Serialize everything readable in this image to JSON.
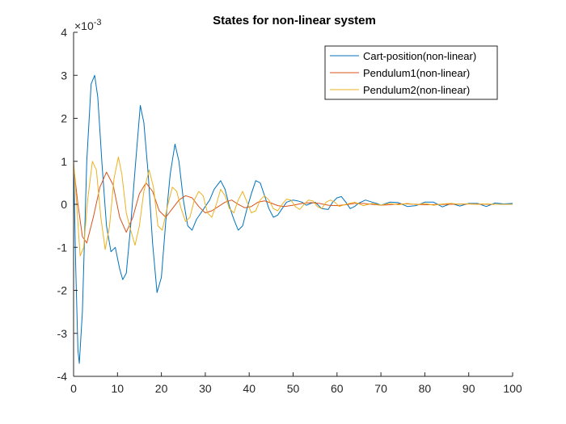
{
  "chart_data": {
    "type": "line",
    "title": "States for non-linear system",
    "xlabel": "",
    "ylabel": "",
    "xlim": [
      0,
      100
    ],
    "ylim": [
      -4,
      4
    ],
    "y_exponent_label": "×10",
    "y_exponent_power": "-3",
    "x_ticks": [
      "0",
      "10",
      "20",
      "30",
      "40",
      "50",
      "60",
      "70",
      "80",
      "90",
      "100"
    ],
    "y_ticks": [
      "4",
      "3",
      "2",
      "1",
      "0",
      "-1",
      "-2",
      "-3",
      "-4"
    ],
    "grid": false,
    "legend_position": "top-right",
    "series": [
      {
        "name": "Cart-position(non-linear)",
        "color": "#0072BD",
        "x": [
          0,
          0.5,
          1.0,
          1.3,
          2.0,
          3.0,
          4.0,
          4.8,
          5.5,
          6.5,
          7.5,
          8.5,
          9.5,
          10.5,
          11.2,
          12.0,
          13.0,
          14.0,
          15.2,
          16.0,
          17.0,
          18.0,
          19.0,
          20.0,
          21.0,
          22.0,
          23.1,
          24.0,
          25.0,
          26.0,
          27.0,
          28.0,
          29.0,
          30.0,
          31.0,
          32.0,
          33.5,
          34.5,
          35.5,
          36.5,
          37.5,
          38.5,
          39.5,
          40.5,
          41.5,
          42.5,
          43.5,
          44.5,
          45.5,
          46.5,
          47.5,
          48.5,
          50.0,
          51.0,
          52.0,
          53.0,
          54.0,
          55.0,
          56.5,
          58.0,
          59.0,
          60.0,
          61.0,
          62.0,
          63.0,
          64.0,
          65.0,
          66.5,
          68.0,
          69.0,
          70.0,
          72.0,
          74.0,
          76.0,
          78.0,
          80.0,
          82.0,
          84.0,
          86.0,
          88.0,
          90.0,
          92.0,
          94.0,
          96.0,
          98.0,
          100.0
        ],
        "y": [
          1.0,
          -1.5,
          -3.4,
          -3.7,
          -2.5,
          1.0,
          2.8,
          3.0,
          2.5,
          0.9,
          -0.5,
          -1.1,
          -1.0,
          -1.5,
          -1.75,
          -1.6,
          -0.5,
          0.8,
          2.3,
          1.9,
          0.7,
          -0.9,
          -2.05,
          -1.7,
          -0.4,
          0.7,
          1.4,
          1.0,
          0.1,
          -0.5,
          -0.6,
          -0.35,
          -0.2,
          -0.05,
          0.1,
          0.35,
          0.55,
          0.35,
          -0.05,
          -0.35,
          -0.6,
          -0.5,
          -0.1,
          0.25,
          0.55,
          0.5,
          0.2,
          -0.1,
          -0.3,
          -0.25,
          -0.1,
          0.05,
          0.1,
          0.08,
          0.05,
          -0.02,
          0.02,
          0.05,
          -0.1,
          -0.12,
          0.05,
          0.15,
          0.18,
          0.05,
          -0.1,
          -0.05,
          0.03,
          0.1,
          0.05,
          0.02,
          -0.02,
          0.05,
          0.04,
          -0.05,
          -0.03,
          0.05,
          0.05,
          -0.06,
          0.02,
          -0.04,
          0.02,
          0.02,
          -0.05,
          0.03,
          0.01,
          0.02
        ]
      },
      {
        "name": "Pendulum1(non-linear)",
        "color": "#D95319",
        "x": [
          0,
          1.0,
          2.0,
          3.0,
          4.5,
          6.0,
          7.5,
          9.0,
          10.5,
          12.0,
          13.5,
          15.0,
          16.5,
          18.0,
          19.5,
          21.0,
          22.5,
          24.0,
          25.5,
          27.0,
          28.5,
          30.0,
          31.5,
          33.0,
          34.5,
          36.0,
          37.5,
          39.0,
          40.5,
          42.0,
          43.5,
          45.0,
          46.5,
          48.0,
          50.0,
          52.0,
          54.0,
          56.0,
          58.0,
          60.0,
          62.0,
          64.0,
          66.0,
          68.0,
          70.0,
          72.0,
          74.0,
          76.0,
          78.0,
          80.0,
          85.0,
          90.0,
          95.0,
          100.0
        ],
        "y": [
          0.9,
          0.0,
          -0.75,
          -0.9,
          -0.3,
          0.4,
          0.75,
          0.45,
          -0.3,
          -0.65,
          -0.3,
          0.25,
          0.5,
          0.3,
          -0.15,
          -0.3,
          -0.1,
          0.1,
          0.2,
          0.15,
          -0.05,
          -0.2,
          -0.15,
          -0.05,
          0.05,
          0.1,
          0.0,
          -0.08,
          -0.05,
          0.05,
          0.08,
          0.03,
          -0.03,
          -0.05,
          -0.02,
          0.02,
          0.04,
          0.02,
          -0.02,
          -0.03,
          -0.01,
          0.02,
          0.02,
          0.0,
          -0.02,
          -0.01,
          0.01,
          0.01,
          0.0,
          -0.01,
          0.0,
          0.01,
          0.0,
          0.0
        ]
      },
      {
        "name": "Pendulum2(non-linear)",
        "color": "#EDB120",
        "x": [
          0,
          0.7,
          1.5,
          2.3,
          3.2,
          4.3,
          5.2,
          6.2,
          7.2,
          8.2,
          9.2,
          10.2,
          11.0,
          12.0,
          13.0,
          14.0,
          15.0,
          16.0,
          17.2,
          18.2,
          19.2,
          20.2,
          21.5,
          22.5,
          23.5,
          24.5,
          25.5,
          26.5,
          27.5,
          28.5,
          29.5,
          30.5,
          31.5,
          32.5,
          33.5,
          34.5,
          35.5,
          36.5,
          37.5,
          38.5,
          39.5,
          40.5,
          41.5,
          42.5,
          43.5,
          44.5,
          45.5,
          46.5,
          47.5,
          48.5,
          49.5,
          50.5,
          51.5,
          52.5,
          53.5,
          54.5,
          55.5,
          56.5,
          57.5,
          58.5,
          59.5,
          60.5,
          62.0,
          64.0,
          66.0,
          68.0,
          70.0,
          72.0,
          74.0,
          76.0,
          78.0,
          80.0,
          82.0,
          84.0,
          86.0,
          88.0,
          90.0,
          92.0,
          94.0,
          96.0,
          98.0,
          100.0
        ],
        "y": [
          1.0,
          0.0,
          -1.2,
          -1.0,
          0.1,
          1.0,
          0.8,
          -0.3,
          -1.05,
          -0.5,
          0.6,
          1.1,
          0.7,
          -0.2,
          -0.6,
          -0.95,
          -0.5,
          0.3,
          0.8,
          0.4,
          -0.5,
          -0.6,
          0.0,
          0.4,
          0.3,
          -0.1,
          -0.4,
          -0.3,
          0.1,
          0.3,
          0.2,
          -0.2,
          -0.3,
          0.0,
          0.35,
          0.2,
          -0.1,
          -0.2,
          0.1,
          0.3,
          0.05,
          -0.2,
          -0.15,
          0.1,
          0.2,
          0.1,
          -0.1,
          -0.15,
          0.0,
          0.12,
          0.1,
          -0.05,
          -0.12,
          0.0,
          0.1,
          0.08,
          -0.05,
          -0.1,
          0.05,
          0.1,
          0.05,
          -0.05,
          0.0,
          0.05,
          -0.03,
          0.02,
          -0.02,
          0.02,
          -0.01,
          0.02,
          -0.01,
          0.02,
          -0.02,
          0.01,
          0.02,
          0.0,
          0.01,
          0.0,
          0.01,
          0.0,
          0.0,
          0.0
        ]
      }
    ]
  }
}
